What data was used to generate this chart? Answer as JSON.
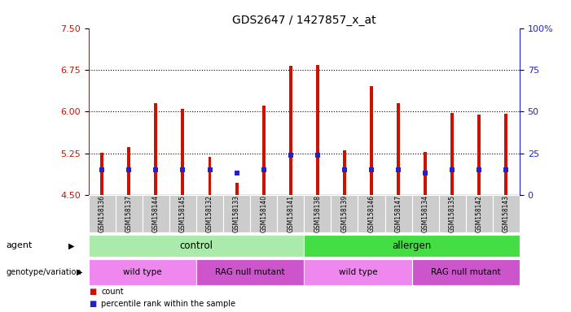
{
  "title": "GDS2647 / 1427857_x_at",
  "samples": [
    "GSM158136",
    "GSM158137",
    "GSM158144",
    "GSM158145",
    "GSM158132",
    "GSM158133",
    "GSM158140",
    "GSM158141",
    "GSM158138",
    "GSM158139",
    "GSM158146",
    "GSM158147",
    "GSM158134",
    "GSM158135",
    "GSM158142",
    "GSM158143"
  ],
  "count_values": [
    5.26,
    5.36,
    6.15,
    6.05,
    5.18,
    4.72,
    6.1,
    6.82,
    6.83,
    5.31,
    6.45,
    6.15,
    5.27,
    5.98,
    5.95,
    5.96
  ],
  "percentile_values": [
    15,
    15,
    15,
    15,
    15,
    13,
    15,
    24,
    24,
    15,
    15,
    15,
    13,
    15,
    15,
    15
  ],
  "ylim_left": [
    4.5,
    7.5
  ],
  "ylim_right": [
    0,
    100
  ],
  "yticks_left": [
    4.5,
    5.25,
    6.0,
    6.75,
    7.5
  ],
  "yticks_right": [
    0,
    25,
    50,
    75,
    100
  ],
  "agent_groups": [
    {
      "label": "control",
      "start": 0,
      "end": 7,
      "color": "#AAEAAA"
    },
    {
      "label": "allergen",
      "start": 8,
      "end": 15,
      "color": "#44DD44"
    }
  ],
  "genotype_groups": [
    {
      "label": "wild type",
      "start": 0,
      "end": 3,
      "color": "#EE88EE"
    },
    {
      "label": "RAG null mutant",
      "start": 4,
      "end": 7,
      "color": "#CC55CC"
    },
    {
      "label": "wild type",
      "start": 8,
      "end": 11,
      "color": "#EE88EE"
    },
    {
      "label": "RAG null mutant",
      "start": 12,
      "end": 15,
      "color": "#CC55CC"
    }
  ],
  "bar_color": "#CC1100",
  "percentile_color": "#2222CC",
  "bar_bottom": 4.5,
  "grid_color": "#000000",
  "bg_color": "#FFFFFF",
  "tick_label_bg": "#CCCCCC",
  "legend_items": [
    {
      "label": "count",
      "color": "#CC1100"
    },
    {
      "label": "percentile rank within the sample",
      "color": "#2222CC"
    }
  ]
}
